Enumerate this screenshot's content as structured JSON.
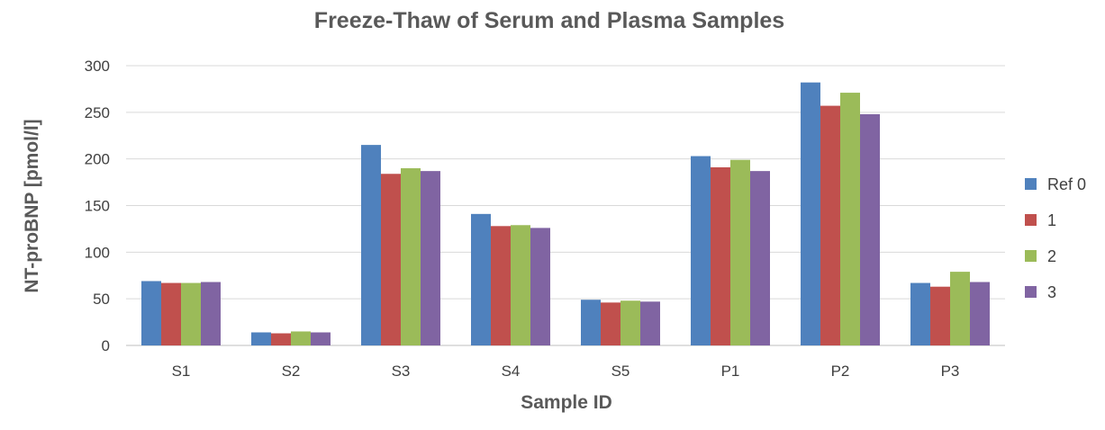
{
  "chart_data": {
    "type": "bar",
    "title": "Freeze-Thaw of Serum and Plasma Samples",
    "xlabel": "Sample ID",
    "ylabel": "NT-proBNP [pmol/l]",
    "categories": [
      "S1",
      "S2",
      "S3",
      "S4",
      "S5",
      "P1",
      "P2",
      "P3"
    ],
    "ylim": [
      0,
      300
    ],
    "yticks": [
      0,
      50,
      100,
      150,
      200,
      250,
      300
    ],
    "grid": true,
    "legend_position": "right",
    "series": [
      {
        "name": "Ref 0",
        "color": "#4F81BD",
        "values": [
          69,
          14,
          215,
          141,
          49,
          203,
          282,
          67
        ]
      },
      {
        "name": "1",
        "color": "#C0504D",
        "values": [
          67,
          13,
          184,
          128,
          46,
          191,
          257,
          63
        ]
      },
      {
        "name": "2",
        "color": "#9BBB59",
        "values": [
          67,
          15,
          190,
          129,
          48,
          199,
          271,
          79
        ]
      },
      {
        "name": "3",
        "color": "#8064A2",
        "values": [
          68,
          14,
          187,
          126,
          47,
          187,
          248,
          68
        ]
      }
    ]
  }
}
